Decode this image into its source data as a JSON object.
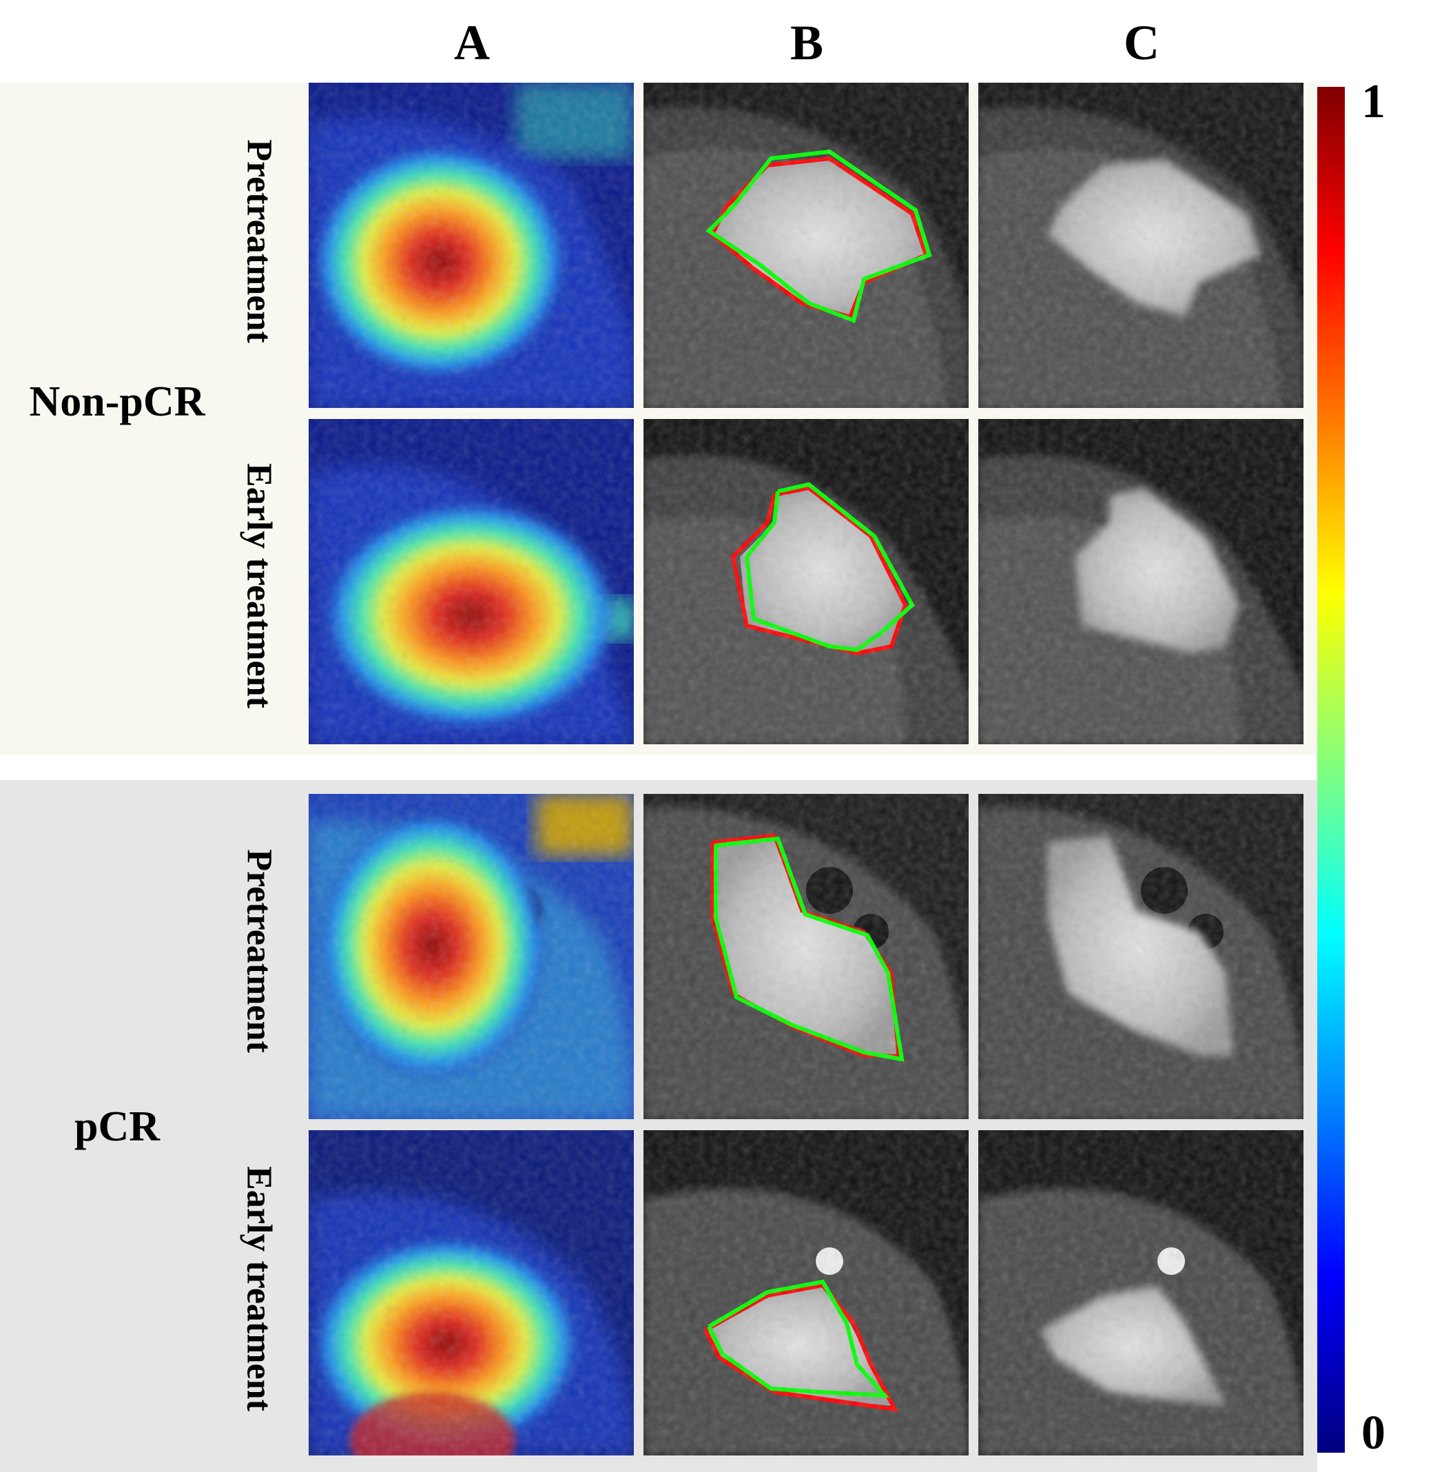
{
  "columns": [
    "A",
    "B",
    "C"
  ],
  "groups": [
    {
      "label": "Non-pCR",
      "rows": [
        "Pretreatment",
        "Early treatment"
      ]
    },
    {
      "label": "pCR",
      "rows": [
        "Pretreatment",
        "Early treatment"
      ]
    }
  ],
  "colorbar": {
    "max_label": "1",
    "min_label": "0",
    "colormap": "jet"
  },
  "contour_colors": {
    "red": "#ff0000",
    "green": "#00ff00"
  }
}
